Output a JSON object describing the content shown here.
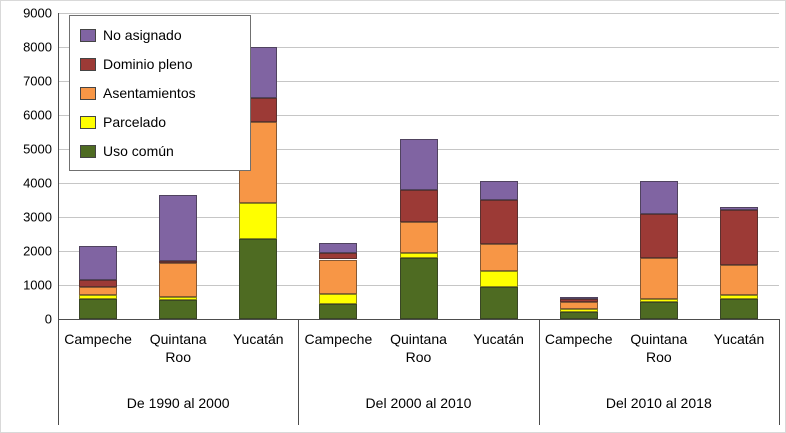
{
  "chart_data": {
    "type": "bar",
    "stacked": true,
    "title": "",
    "xlabel": "",
    "ylabel": "",
    "ylim": [
      0,
      9000
    ],
    "ytick_step": 1000,
    "grid": true,
    "legend_position": "top-left",
    "group_labels": [
      "De  1990  al 2000",
      "Del 2000 al 2010",
      "Del 2010 al 2018"
    ],
    "categories": [
      "Campeche",
      "Quintana Roo",
      "Yucatán",
      "Campeche",
      "Quintana Roo",
      "Yucatán",
      "Campeche",
      "Quintana Roo",
      "Yucatán"
    ],
    "series": [
      {
        "name": "Uso común",
        "color": "#4E6B22",
        "values": [
          600,
          550,
          2350,
          450,
          1800,
          950,
          200,
          500,
          600
        ]
      },
      {
        "name": "Parcelado",
        "color": "#FFFF00",
        "values": [
          100,
          100,
          1050,
          300,
          150,
          450,
          100,
          100,
          100
        ]
      },
      {
        "name": "Asentamientos",
        "color": "#F79646",
        "values": [
          250,
          1000,
          2400,
          1000,
          900,
          800,
          200,
          1200,
          900
        ]
      },
      {
        "name": "Dominio pleno",
        "color": "#9C3A36",
        "values": [
          200,
          50,
          700,
          200,
          950,
          1300,
          100,
          1300,
          1600
        ]
      },
      {
        "name": "No asignado",
        "color": "#8064A2",
        "values": [
          1000,
          1950,
          1500,
          300,
          1500,
          550,
          50,
          950,
          100
        ]
      }
    ],
    "legend_order": [
      "No asignado",
      "Dominio pleno",
      "Asentamientos",
      "Parcelado",
      "Uso común"
    ]
  }
}
